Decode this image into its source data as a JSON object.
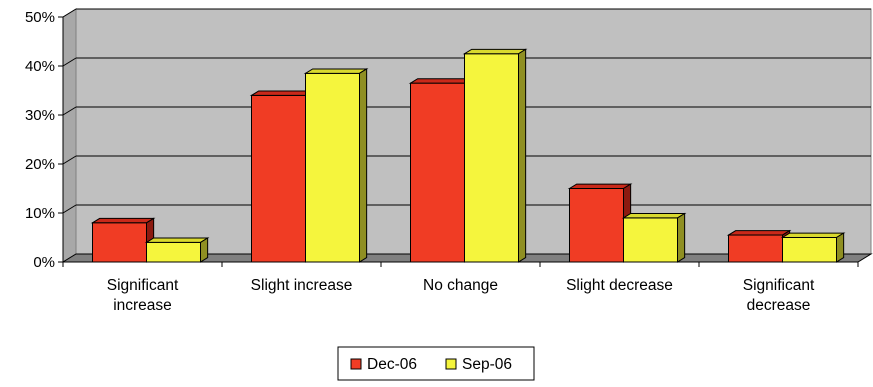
{
  "chart_data": {
    "type": "bar",
    "title": "",
    "xlabel": "",
    "ylabel": "",
    "categories": [
      [
        "Significant",
        "increase"
      ],
      [
        "Slight increase"
      ],
      [
        "No change"
      ],
      [
        "Slight decrease"
      ],
      [
        "Significant",
        "decrease"
      ]
    ],
    "series": [
      {
        "name": "Dec-06",
        "values": [
          8,
          34,
          36.5,
          15,
          5.5
        ],
        "color": "#f03c24",
        "top_color": "#c9291a",
        "side_color": "#8c1a10"
      },
      {
        "name": "Sep-06",
        "values": [
          4,
          38.5,
          42.5,
          9,
          5
        ],
        "color": "#f5f53d",
        "top_color": "#d9d92e",
        "side_color": "#8f8f22"
      }
    ],
    "ylim": [
      0,
      50
    ],
    "yticks": [
      0,
      10,
      20,
      30,
      40,
      50
    ],
    "ytick_labels": [
      "0%",
      "10%",
      "20%",
      "30%",
      "40%",
      "50%"
    ],
    "grid": true,
    "legend_position": "bottom",
    "style": "3d-clustered-column"
  }
}
